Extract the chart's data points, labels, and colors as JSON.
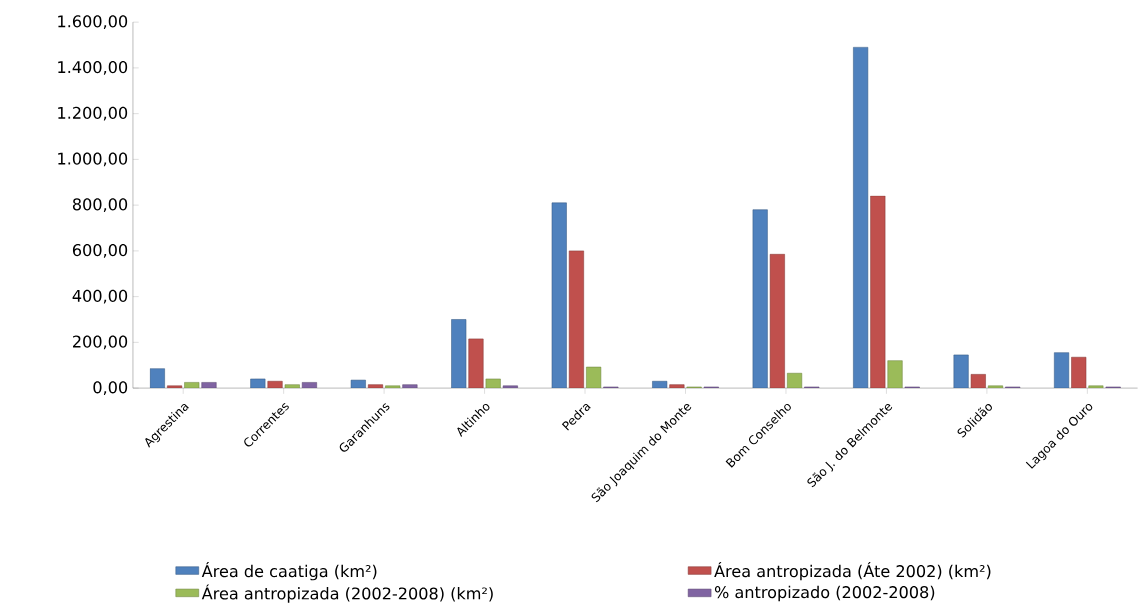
{
  "chart_data": {
    "type": "bar",
    "categories": [
      "Agrestina",
      "Correntes",
      "Garanhuns",
      "Altinho",
      "Pedra",
      "São Joaquim do Monte",
      "Bom Conselho",
      "São J. do Belmonte",
      "Solidão",
      "Lagoa do Ouro"
    ],
    "series": [
      {
        "name": "Área de caatiga (km²)",
        "color": "#4f81bd",
        "values": [
          85,
          40,
          35,
          300,
          810,
          30,
          780,
          1490,
          145,
          155
        ]
      },
      {
        "name": "Área antropizada (Áte 2002) (km²)",
        "color": "#c0504d",
        "values": [
          10,
          30,
          15,
          215,
          600,
          15,
          585,
          840,
          60,
          135
        ]
      },
      {
        "name": "Área antropizada (2002-2008) (km²)",
        "color": "#9bbb59",
        "values": [
          25,
          15,
          10,
          40,
          92,
          5,
          65,
          120,
          10,
          10
        ]
      },
      {
        "name": "% antropizado (2002-2008)",
        "color": "#8064a2",
        "values": [
          25,
          25,
          15,
          10,
          5,
          5,
          5,
          5,
          5,
          5
        ]
      }
    ],
    "ylim": [
      0,
      1600
    ],
    "yticks": [
      {
        "value": 0,
        "label": "0,00"
      },
      {
        "value": 200,
        "label": "200,00"
      },
      {
        "value": 400,
        "label": "400,00"
      },
      {
        "value": 600,
        "label": "600,00"
      },
      {
        "value": 800,
        "label": "800,00"
      },
      {
        "value": 1000,
        "label": "1.000,00"
      },
      {
        "value": 1200,
        "label": "1.200,00"
      },
      {
        "value": 1400,
        "label": "1.400,00"
      },
      {
        "value": 1600,
        "label": "1.600,00"
      }
    ],
    "grid": false,
    "legend": "bottom"
  }
}
